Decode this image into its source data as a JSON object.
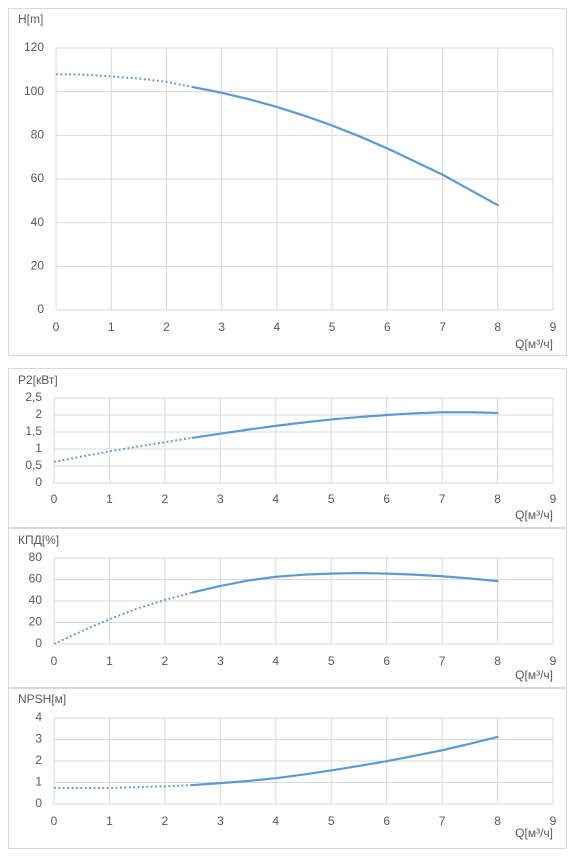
{
  "chart_data": [
    {
      "type": "line",
      "title": "H[m]",
      "x_label": "Q[м³/ч]",
      "xlim": [
        0,
        9
      ],
      "xticks": [
        0,
        1,
        2,
        3,
        4,
        5,
        6,
        7,
        8,
        9
      ],
      "ylim": [
        0,
        120
      ],
      "yticks": [
        0,
        20,
        40,
        60,
        80,
        100,
        120
      ],
      "grid": true,
      "series": [
        {
          "color": "#5b9bd5",
          "style": "dotted",
          "x": [
            0,
            0.5,
            1,
            1.5,
            2,
            2.5
          ],
          "values": [
            108,
            107.8,
            107,
            106,
            104.5,
            102
          ]
        },
        {
          "color": "#5b9bd5",
          "style": "solid",
          "x": [
            2.5,
            3,
            3.5,
            4,
            4.5,
            5,
            5.5,
            6,
            6.5,
            7,
            7.5,
            8
          ],
          "values": [
            102,
            99.5,
            96.5,
            93,
            89,
            84.5,
            79.5,
            74,
            68,
            62,
            55,
            48
          ]
        }
      ]
    },
    {
      "type": "line",
      "title": "P2[кВт]",
      "x_label": "Q[м³/ч]",
      "xlim": [
        0,
        9
      ],
      "xticks": [
        0,
        1,
        2,
        3,
        4,
        5,
        6,
        7,
        8,
        9
      ],
      "ylim": [
        0,
        2.5
      ],
      "yticks": [
        0,
        {
          "value": 0.5,
          "label": "0,5"
        },
        1,
        {
          "value": 1.5,
          "label": "1,5"
        },
        2,
        {
          "value": 2.5,
          "label": "2,5"
        }
      ],
      "grid": true,
      "series": [
        {
          "color": "#5b9bd5",
          "style": "dotted",
          "x": [
            0,
            0.5,
            1,
            1.5,
            2,
            2.5
          ],
          "values": [
            0.62,
            0.78,
            0.93,
            1.07,
            1.2,
            1.33
          ]
        },
        {
          "color": "#5b9bd5",
          "style": "solid",
          "x": [
            2.5,
            3,
            3.5,
            4,
            4.5,
            5,
            5.5,
            6,
            6.5,
            7,
            7.5,
            8
          ],
          "values": [
            1.33,
            1.45,
            1.57,
            1.68,
            1.78,
            1.87,
            1.94,
            2.0,
            2.05,
            2.08,
            2.08,
            2.06
          ]
        }
      ]
    },
    {
      "type": "line",
      "title": "КПД[%]",
      "x_label": "Q[м³/ч]",
      "xlim": [
        0,
        9
      ],
      "xticks": [
        0,
        1,
        2,
        3,
        4,
        5,
        6,
        7,
        8,
        9
      ],
      "ylim": [
        0,
        80
      ],
      "yticks": [
        0,
        20,
        40,
        60,
        80
      ],
      "grid": true,
      "series": [
        {
          "color": "#5b9bd5",
          "style": "dotted",
          "x": [
            0,
            0.5,
            1,
            1.5,
            2,
            2.5
          ],
          "values": [
            0,
            12,
            23,
            33,
            41,
            48
          ]
        },
        {
          "color": "#5b9bd5",
          "style": "solid",
          "x": [
            2.5,
            3,
            3.5,
            4,
            4.5,
            5,
            5.5,
            6,
            6.5,
            7,
            7.5,
            8
          ],
          "values": [
            48,
            54,
            59,
            62.5,
            64.5,
            65.5,
            66,
            65.5,
            64.5,
            63,
            61,
            58.5
          ]
        }
      ]
    },
    {
      "type": "line",
      "title": "NPSH[м]",
      "x_label": "Q[м³/ч]",
      "xlim": [
        0,
        9
      ],
      "xticks": [
        0,
        1,
        2,
        3,
        4,
        5,
        6,
        7,
        8,
        9
      ],
      "ylim": [
        0,
        4
      ],
      "yticks": [
        0,
        1,
        2,
        3,
        4
      ],
      "grid": true,
      "series": [
        {
          "color": "#5b9bd5",
          "style": "dotted",
          "x": [
            0,
            0.5,
            1,
            1.5,
            2,
            2.5
          ],
          "values": [
            0.75,
            0.74,
            0.75,
            0.78,
            0.82,
            0.88
          ]
        },
        {
          "color": "#5b9bd5",
          "style": "solid",
          "x": [
            2.5,
            3,
            3.5,
            4,
            4.5,
            5,
            5.5,
            6,
            6.5,
            7,
            7.5,
            8
          ],
          "values": [
            0.88,
            0.97,
            1.07,
            1.2,
            1.37,
            1.56,
            1.77,
            1.99,
            2.24,
            2.5,
            2.8,
            3.12
          ]
        }
      ]
    }
  ]
}
